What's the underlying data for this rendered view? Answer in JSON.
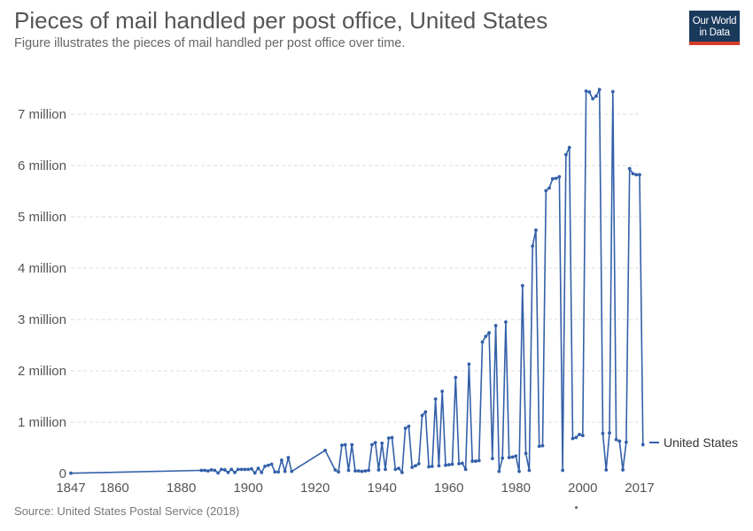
{
  "header": {
    "title": "Pieces of mail handled per post office, United States",
    "subtitle": "Figure illustrates the pieces of mail handled per post office over time."
  },
  "logo": {
    "line1": "Our World",
    "line2": "in Data"
  },
  "footer": {
    "source": "Source: United States Postal Service (2018)"
  },
  "colors": {
    "series": "#3360a9",
    "grid": "#dddddd",
    "logo_bg": "#1a3a5c",
    "logo_accent": "#d73c2c"
  },
  "chart_data": {
    "type": "line",
    "title": "Pieces of mail handled per post office, United States",
    "subtitle": "Figure illustrates the pieces of mail handled per post office over time.",
    "xlabel": "",
    "ylabel": "",
    "xlim": [
      1847,
      2017
    ],
    "ylim": [
      0,
      7500000
    ],
    "grid": true,
    "legend_position": "right",
    "x_ticks": [
      1847,
      1860,
      1880,
      1900,
      1920,
      1940,
      1960,
      1980,
      2000,
      2017
    ],
    "y_ticks": [
      {
        "value": 0,
        "label": "0"
      },
      {
        "value": 1000000,
        "label": "1 million"
      },
      {
        "value": 2000000,
        "label": "2 million"
      },
      {
        "value": 3000000,
        "label": "3 million"
      },
      {
        "value": 4000000,
        "label": "4 million"
      },
      {
        "value": 5000000,
        "label": "5 million"
      },
      {
        "value": 6000000,
        "label": "6 million"
      },
      {
        "value": 7000000,
        "label": "7 million"
      }
    ],
    "series": [
      {
        "name": "United States",
        "color": "#3360a9",
        "points": [
          [
            1847,
            5000
          ],
          [
            1886,
            60000
          ],
          [
            1887,
            60000
          ],
          [
            1888,
            50000
          ],
          [
            1889,
            70000
          ],
          [
            1890,
            60000
          ],
          [
            1891,
            10000
          ],
          [
            1892,
            80000
          ],
          [
            1893,
            70000
          ],
          [
            1894,
            20000
          ],
          [
            1895,
            80000
          ],
          [
            1896,
            20000
          ],
          [
            1897,
            80000
          ],
          [
            1898,
            80000
          ],
          [
            1899,
            80000
          ],
          [
            1900,
            80000
          ],
          [
            1901,
            90000
          ],
          [
            1902,
            10000
          ],
          [
            1903,
            100000
          ],
          [
            1904,
            20000
          ],
          [
            1905,
            140000
          ],
          [
            1906,
            160000
          ],
          [
            1907,
            180000
          ],
          [
            1908,
            30000
          ],
          [
            1909,
            30000
          ],
          [
            1910,
            260000
          ],
          [
            1911,
            40000
          ],
          [
            1912,
            310000
          ],
          [
            1913,
            40000
          ],
          [
            1923,
            450000
          ],
          [
            1926,
            70000
          ],
          [
            1927,
            30000
          ],
          [
            1928,
            550000
          ],
          [
            1929,
            560000
          ],
          [
            1930,
            60000
          ],
          [
            1931,
            560000
          ],
          [
            1932,
            50000
          ],
          [
            1933,
            50000
          ],
          [
            1934,
            40000
          ],
          [
            1935,
            50000
          ],
          [
            1936,
            60000
          ],
          [
            1937,
            560000
          ],
          [
            1938,
            600000
          ],
          [
            1939,
            70000
          ],
          [
            1940,
            590000
          ],
          [
            1941,
            80000
          ],
          [
            1942,
            690000
          ],
          [
            1943,
            700000
          ],
          [
            1944,
            80000
          ],
          [
            1945,
            100000
          ],
          [
            1946,
            20000
          ],
          [
            1947,
            880000
          ],
          [
            1948,
            920000
          ],
          [
            1949,
            120000
          ],
          [
            1950,
            150000
          ],
          [
            1951,
            190000
          ],
          [
            1952,
            1130000
          ],
          [
            1953,
            1200000
          ],
          [
            1954,
            130000
          ],
          [
            1955,
            140000
          ],
          [
            1956,
            1450000
          ],
          [
            1957,
            150000
          ],
          [
            1958,
            1600000
          ],
          [
            1959,
            160000
          ],
          [
            1960,
            170000
          ],
          [
            1961,
            180000
          ],
          [
            1962,
            1870000
          ],
          [
            1963,
            190000
          ],
          [
            1964,
            200000
          ],
          [
            1965,
            80000
          ],
          [
            1966,
            2130000
          ],
          [
            1967,
            240000
          ],
          [
            1968,
            240000
          ],
          [
            1969,
            250000
          ],
          [
            1970,
            2560000
          ],
          [
            1971,
            2670000
          ],
          [
            1972,
            2740000
          ],
          [
            1973,
            290000
          ],
          [
            1974,
            2880000
          ],
          [
            1975,
            40000
          ],
          [
            1976,
            300000
          ],
          [
            1977,
            2950000
          ],
          [
            1978,
            310000
          ],
          [
            1979,
            320000
          ],
          [
            1980,
            340000
          ],
          [
            1981,
            40000
          ],
          [
            1982,
            3660000
          ],
          [
            1983,
            390000
          ],
          [
            1984,
            60000
          ],
          [
            1985,
            4430000
          ],
          [
            1986,
            4740000
          ],
          [
            1987,
            530000
          ],
          [
            1988,
            540000
          ],
          [
            1989,
            5510000
          ],
          [
            1990,
            5560000
          ],
          [
            1991,
            5740000
          ],
          [
            1992,
            5750000
          ],
          [
            1993,
            5780000
          ],
          [
            1994,
            60000
          ],
          [
            1995,
            6210000
          ],
          [
            1996,
            6350000
          ],
          [
            1997,
            680000
          ],
          [
            1998,
            700000
          ],
          [
            1999,
            760000
          ],
          [
            2000,
            740000
          ],
          [
            2001,
            7450000
          ],
          [
            2002,
            7430000
          ],
          [
            2003,
            7300000
          ],
          [
            2004,
            7350000
          ],
          [
            2005,
            7480000
          ],
          [
            2006,
            780000
          ],
          [
            2007,
            70000
          ],
          [
            2008,
            790000
          ],
          [
            2009,
            7440000
          ],
          [
            2010,
            660000
          ],
          [
            2011,
            630000
          ],
          [
            2012,
            70000
          ],
          [
            2013,
            610000
          ],
          [
            2014,
            5940000
          ],
          [
            2015,
            5840000
          ],
          [
            2016,
            5820000
          ],
          [
            2017,
            5820000
          ],
          [
            2018,
            560000
          ]
        ]
      }
    ]
  }
}
